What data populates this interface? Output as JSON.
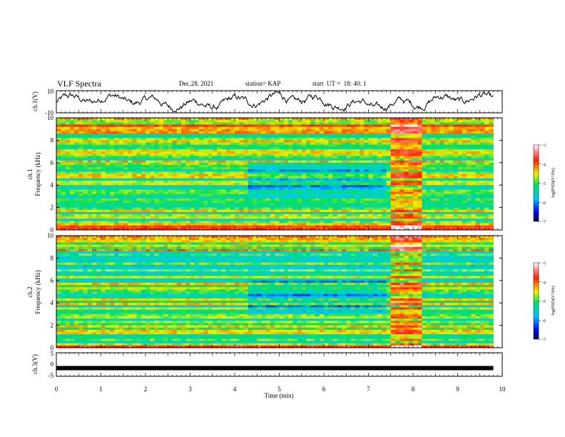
{
  "header": {
    "title": "VLF Spectra",
    "date": "Dec.28, 2021",
    "station": "station= KAP",
    "start_ut": "start  UT =  18: 40: 1"
  },
  "chart_data": [
    {
      "type": "line",
      "title": "",
      "ylabel": "ch.1(V)",
      "xlim": [
        0,
        10
      ],
      "ylim": [
        -10,
        10
      ],
      "yticks": [
        "10",
        "-10"
      ],
      "description_series": "noisy waveform oscillating around 0 V",
      "x_extent": [
        0,
        9.8
      ]
    },
    {
      "type": "heatmap",
      "ylabel_line1": "ch.1",
      "ylabel_line2": "Frequency (kHz)",
      "xlim": [
        0,
        10
      ],
      "ylim": [
        0,
        10
      ],
      "yticks": [
        "0",
        "2",
        "4",
        "6",
        "8",
        "10"
      ],
      "x_extent": [
        0,
        9.8
      ],
      "colorbar": {
        "label": "log(PSD)(V²/Hz)",
        "ticks": [
          "-3",
          "-4",
          "-5",
          "-6",
          "-7"
        ],
        "range": [
          -7,
          -3
        ]
      }
    },
    {
      "type": "heatmap",
      "ylabel_line1": "ch.2",
      "ylabel_line2": "Frequency (kHz)",
      "xlim": [
        0,
        10
      ],
      "ylim": [
        0,
        10
      ],
      "yticks": [
        "0",
        "2",
        "4",
        "6",
        "8",
        "10"
      ],
      "x_extent": [
        0,
        9.8
      ],
      "colorbar": {
        "label": "log(PSD)(V²/Hz)",
        "ticks": [
          "-3",
          "-4",
          "-5",
          "-6",
          "-7"
        ],
        "range": [
          -7,
          -3
        ]
      }
    },
    {
      "type": "line",
      "ylabel": "ch.3(V)",
      "xlim": [
        0,
        10
      ],
      "ylim": [
        -5,
        5
      ],
      "yticks": [
        "5",
        "0",
        "-5"
      ],
      "x_extent": [
        0,
        9.8
      ],
      "level": -1.5
    }
  ],
  "xaxis": {
    "label": "Time (min)",
    "ticks": [
      "0",
      "1",
      "2",
      "3",
      "4",
      "5",
      "6",
      "7",
      "8",
      "9",
      "10"
    ]
  },
  "colors": {
    "axis": "#000000",
    "background": "#ffffff"
  }
}
